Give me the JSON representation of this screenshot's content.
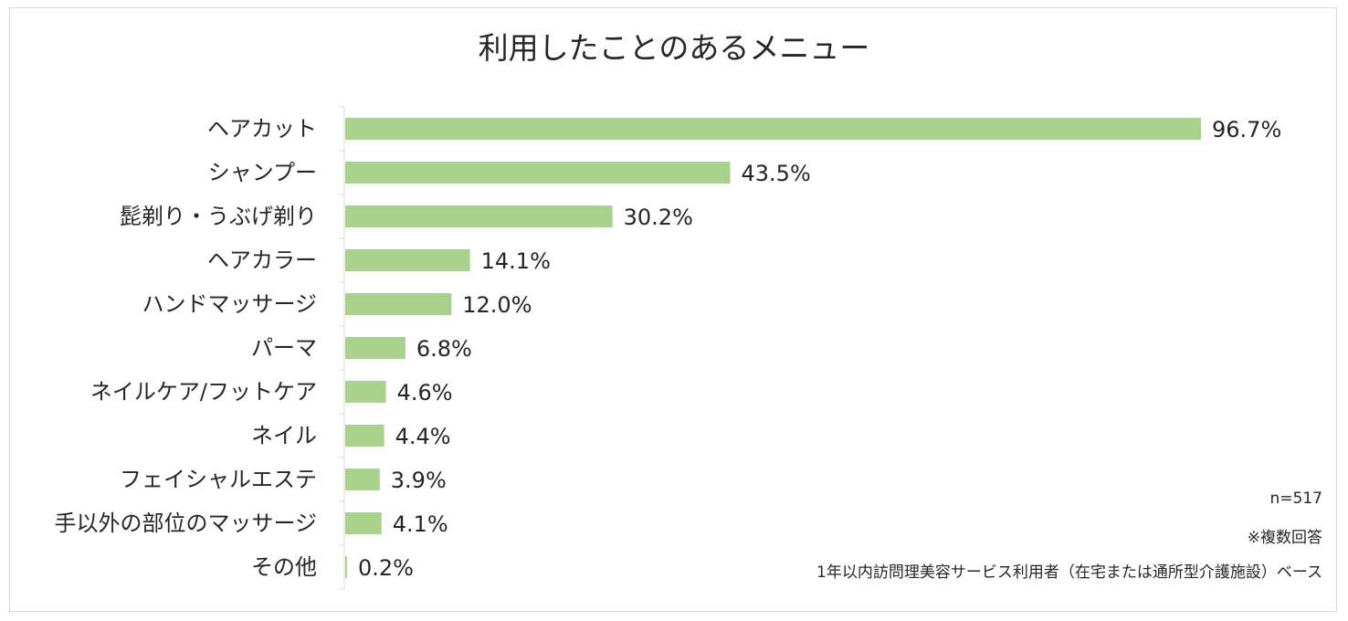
{
  "chart_data": {
    "type": "bar",
    "orientation": "horizontal",
    "title": "利用したことのあるメニュー",
    "categories": [
      "ヘアカット",
      "シャンプー",
      "髭剃り・うぶげ剃り",
      "ヘアカラー",
      "ハンドマッサージ",
      "パーマ",
      "ネイルケア/フットケア",
      "ネイル",
      "フェイシャルエステ",
      "手以外の部位のマッサージ",
      "その他"
    ],
    "values": [
      96.7,
      43.5,
      30.2,
      14.1,
      12.0,
      6.8,
      4.6,
      4.4,
      3.9,
      4.1,
      0.2
    ],
    "value_labels": [
      "96.7%",
      "43.5%",
      "30.2%",
      "14.1%",
      "12.0%",
      "6.8%",
      "4.6%",
      "4.4%",
      "3.9%",
      "4.1%",
      "0.2%"
    ],
    "unit": "%",
    "xlim": [
      0,
      100
    ],
    "grid": false,
    "bar_color": "#a9d18e",
    "notes": [
      "n=517",
      "※複数回答",
      "1年以内訪問理美容サービス利用者（在宅または通所型介護施設）ベース"
    ]
  }
}
